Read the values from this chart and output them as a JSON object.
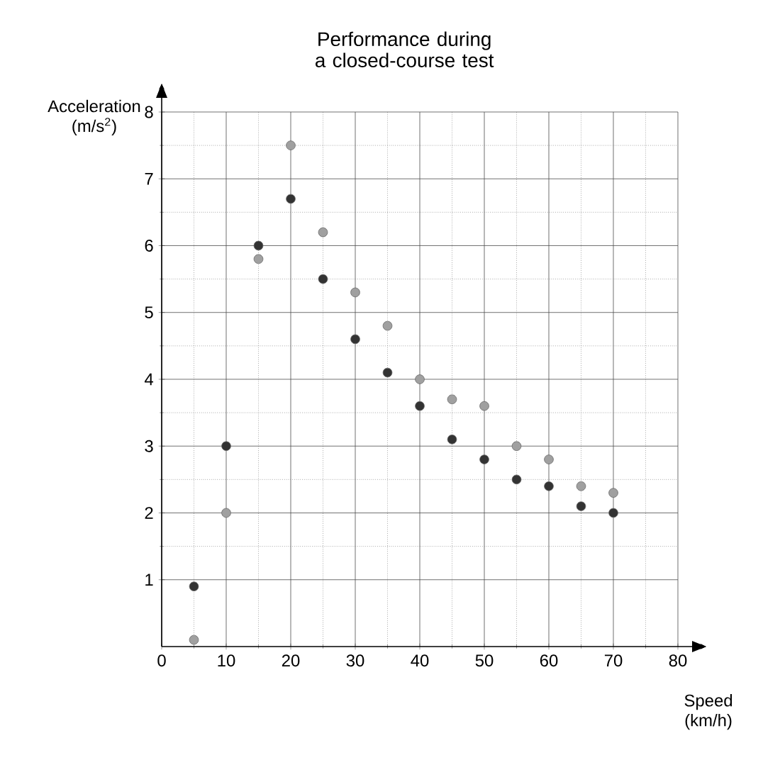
{
  "chart_data": {
    "type": "scatter",
    "title": "Performance during a closed-course test",
    "xlabel": "Speed (km/h)",
    "ylabel": "Acceleration (m/s$^{2}$)",
    "x": [
      5,
      10,
      15,
      20,
      25,
      30,
      35,
      40,
      45,
      50,
      55,
      60,
      65,
      70
    ],
    "series": [
      {
        "color": "#333333",
        "values": [
          0.9,
          3,
          6,
          6.7,
          5.5,
          4.6,
          4.1,
          3.6,
          3.1,
          2.8,
          2.5,
          2.4,
          2.1,
          2.0
        ]
      },
      {
        "color": "#a0a0a0",
        "values": [
          0.1,
          2,
          5.8,
          7.5,
          6.2,
          5.3,
          4.8,
          4.0,
          3.7,
          3.6,
          3.0,
          2.8,
          2.4,
          2.3
        ]
      }
    ],
    "xlim": [
      0,
      80
    ],
    "ylim": [
      0,
      8
    ],
    "xticks": [
      0,
      10,
      20,
      30,
      40,
      50,
      60,
      70,
      80
    ],
    "yticks": [
      1,
      2,
      3,
      4,
      5,
      6,
      7,
      8
    ],
    "grid": true,
    "marker": "circle"
  }
}
